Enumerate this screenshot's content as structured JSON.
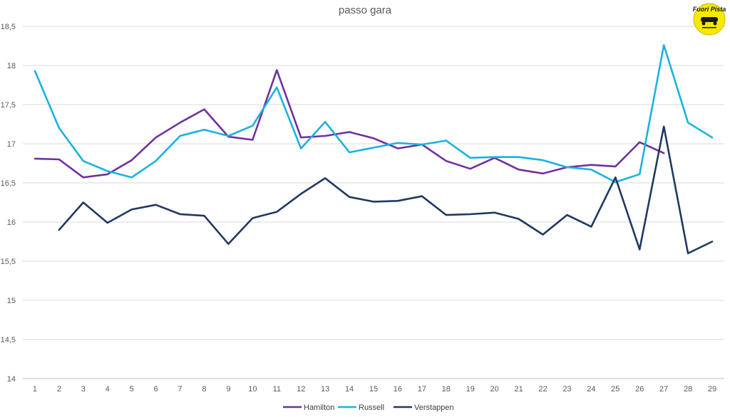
{
  "chart_data": {
    "type": "line",
    "title": "passo gara",
    "xlabel": "",
    "ylabel": "",
    "ylim": [
      14,
      18.5
    ],
    "y_ticks": [
      "14",
      "14,5",
      "15",
      "15,5",
      "16",
      "16,5",
      "17",
      "17,5",
      "18",
      "18,5"
    ],
    "x": [
      1,
      2,
      3,
      4,
      5,
      6,
      7,
      8,
      9,
      10,
      11,
      12,
      13,
      14,
      15,
      16,
      17,
      18,
      19,
      20,
      21,
      22,
      23,
      24,
      25,
      26,
      27,
      28,
      29
    ],
    "grid": true,
    "legend_position": "bottom",
    "series": [
      {
        "name": "Hamilton",
        "color": "#7030a0",
        "values": [
          16.81,
          16.8,
          16.57,
          16.61,
          16.79,
          17.08,
          17.27,
          17.44,
          17.09,
          17.05,
          17.94,
          17.08,
          17.1,
          17.15,
          17.07,
          16.94,
          16.99,
          16.78,
          16.68,
          16.82,
          16.67,
          16.62,
          16.7,
          16.73,
          16.71,
          17.02,
          16.88,
          null,
          null
        ]
      },
      {
        "name": "Russell",
        "color": "#1ab2e0",
        "values": [
          17.93,
          17.2,
          16.78,
          16.65,
          16.57,
          16.78,
          17.1,
          17.18,
          17.1,
          17.23,
          17.72,
          16.94,
          17.28,
          16.89,
          16.95,
          17.01,
          16.99,
          17.04,
          16.82,
          16.83,
          16.83,
          16.79,
          16.7,
          16.67,
          16.51,
          16.61,
          18.26,
          17.27,
          17.08
        ]
      },
      {
        "name": "Verstappen",
        "color": "#203864",
        "values": [
          null,
          15.9,
          16.25,
          15.99,
          16.16,
          16.22,
          16.1,
          16.08,
          15.72,
          16.05,
          16.13,
          16.36,
          16.56,
          16.32,
          16.26,
          16.27,
          16.33,
          16.09,
          16.1,
          16.12,
          16.04,
          15.84,
          16.09,
          15.94,
          16.57,
          15.65,
          17.22,
          15.6,
          15.75
        ]
      }
    ]
  },
  "logo": {
    "text": "Fuori Pista",
    "icon": "car-logo-icon"
  }
}
